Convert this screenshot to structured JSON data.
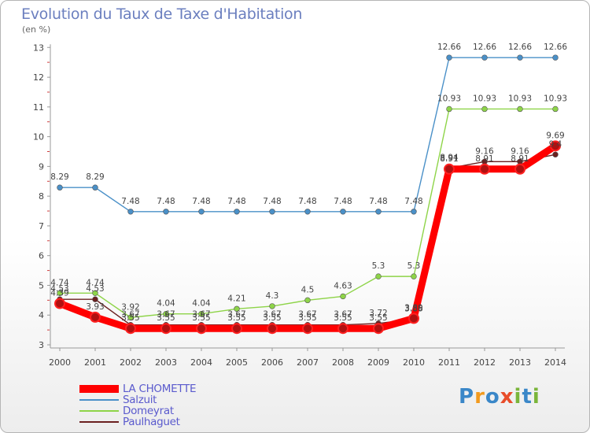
{
  "title": "Evolution du Taux de Taxe d'Habitation",
  "unit_label": "(en %)",
  "logo": "Proxiti",
  "chart_data": {
    "type": "line",
    "title": "Evolution du Taux de Taxe d'Habitation",
    "ylabel": "(en %)",
    "xlabel": "",
    "ylim": [
      3,
      13
    ],
    "yticks": [
      "3",
      "4",
      "5",
      "6",
      "7",
      "8",
      "9",
      "10",
      "11",
      "12",
      "13"
    ],
    "grid": false,
    "legend_position": "bottom-left",
    "x": [
      "2000",
      "2001",
      "2002",
      "2003",
      "2004",
      "2005",
      "2006",
      "2007",
      "2008",
      "2009",
      "2010",
      "2011",
      "2012",
      "2013",
      "2014"
    ],
    "series": [
      {
        "name": "LA CHOMETTE",
        "color": "#ff0000",
        "values": [
          4.39,
          3.93,
          3.55,
          3.55,
          3.55,
          3.55,
          3.55,
          3.55,
          3.55,
          3.55,
          3.89,
          8.91,
          8.91,
          8.91,
          9.69
        ],
        "labels": [
          "4.39",
          "3.93",
          "3.55",
          "3.55",
          "3.55",
          "3.55",
          "3.55",
          "3.55",
          "3.55",
          "3.55",
          "3.89",
          "8.91",
          "8.91",
          "8.91",
          "9.69"
        ]
      },
      {
        "name": "Salzuit",
        "color": "#4a90c8",
        "values": [
          8.29,
          8.29,
          7.48,
          7.48,
          7.48,
          7.48,
          7.48,
          7.48,
          7.48,
          7.48,
          7.48,
          12.66,
          12.66,
          12.66,
          12.66
        ],
        "labels": [
          "8.29",
          "8.29",
          "7.48",
          "7.48",
          "7.48",
          "7.48",
          "7.48",
          "7.48",
          "7.48",
          "7.48",
          "7.48",
          "12.66",
          "12.66",
          "12.66",
          "12.66"
        ]
      },
      {
        "name": "Domeyrat",
        "color": "#8ed448",
        "values": [
          4.74,
          4.74,
          3.92,
          4.04,
          4.04,
          4.21,
          4.3,
          4.5,
          4.63,
          5.3,
          5.3,
          10.93,
          10.93,
          10.93,
          10.93
        ],
        "labels": [
          "4.74",
          "4.74",
          "3.92",
          "4.04",
          "4.04",
          "4.21",
          "4.3",
          "4.5",
          "4.63",
          "5.3",
          "5.3",
          "10.93",
          "10.93",
          "10.93",
          "10.93"
        ]
      },
      {
        "name": "Paulhaguet",
        "color": "#6b2020",
        "values": [
          4.53,
          4.53,
          3.67,
          3.67,
          3.67,
          3.67,
          3.67,
          3.67,
          3.67,
          3.72,
          3.86,
          8.94,
          9.16,
          9.16,
          9.4
        ],
        "labels": [
          "4.53",
          "4.53",
          "3.67",
          "3.67",
          "3.67",
          "3.67",
          "3.67",
          "3.67",
          "3.67",
          "3.72",
          "3.86",
          "8.94",
          "9.16",
          "9.16",
          "9.4"
        ]
      }
    ]
  }
}
